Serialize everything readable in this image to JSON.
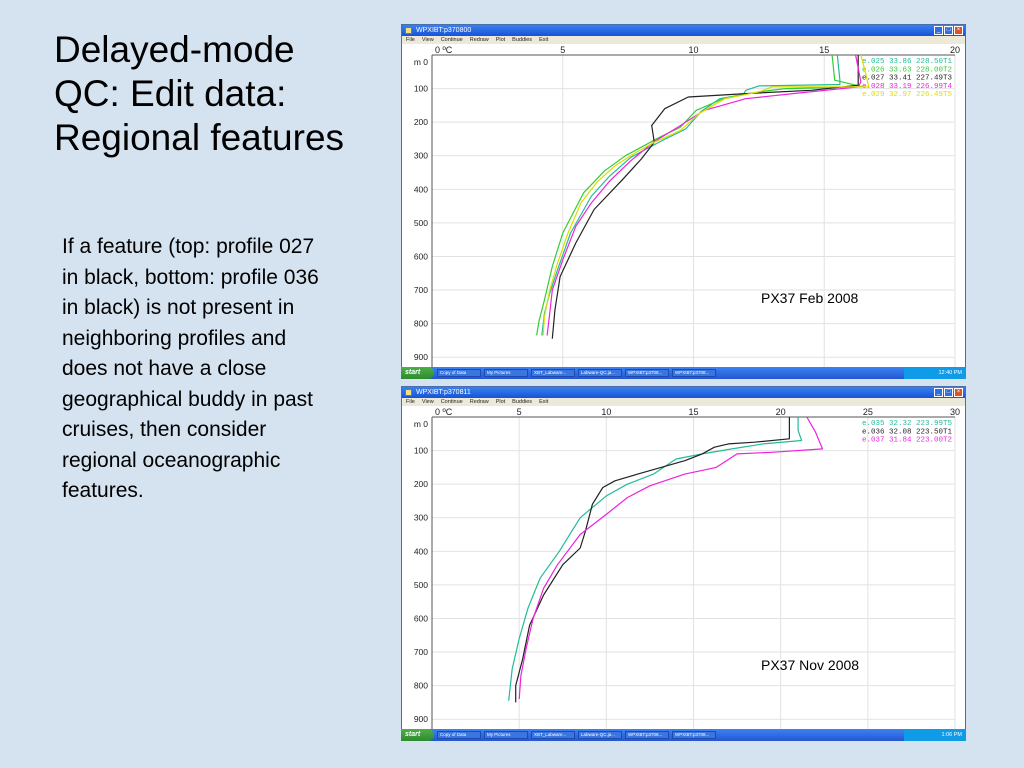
{
  "slide": {
    "title_lines": [
      "Delayed-mode",
      "QC: Edit data:",
      "Regional features"
    ],
    "body": "If a feature (top: profile 027 in black, bottom: profile 036 in black) is not present in neighboring profiles and does not have a close geographical buddy in past cruises, then consider regional oceanographic features."
  },
  "windows": [
    {
      "title": "WPXIBT:p370800",
      "menu": [
        "File",
        "View",
        "Continue",
        "Redraw",
        "Plot",
        "Buddies",
        "Exit"
      ],
      "caption": "PX37  Feb 2008"
    },
    {
      "title": "WPXIBT:p370811",
      "menu": [
        "File",
        "View",
        "Continue",
        "Redraw",
        "Plot",
        "Buddies",
        "Exit"
      ],
      "caption": "PX37  Nov 2008"
    }
  ],
  "taskbar": {
    "start_label": "start",
    "tasks": [
      "Copy of Data",
      "My Pictures",
      "XBT_Labware...",
      "Labware-QC.ja...",
      "WPXIBT:p3708...",
      "WPXIBT:p3708..."
    ],
    "clock_top": "12:40 PM",
    "clock_bottom": "1:06 PM"
  },
  "chart_data": [
    {
      "type": "line",
      "x_unit": "0 ºC",
      "y_unit": "m 0",
      "xlim": [
        0,
        20
      ],
      "ylim": [
        0,
        950
      ],
      "x_ticks": [
        5,
        10,
        15,
        20
      ],
      "y_ticks": [
        100,
        200,
        300,
        400,
        500,
        600,
        700,
        800,
        900
      ],
      "legend_position": "top-right",
      "series": [
        {
          "name": "e.025   33.86  228.50T1",
          "color": "#22bb99",
          "points": [
            [
              15.5,
              0
            ],
            [
              15.6,
              75
            ],
            [
              15.6,
              88
            ],
            [
              12.5,
              92
            ],
            [
              12,
              105
            ],
            [
              11.9,
              118
            ],
            [
              11,
              130
            ],
            [
              10.3,
              168
            ],
            [
              9.7,
              220
            ],
            [
              8.8,
              255
            ],
            [
              7.6,
              305
            ],
            [
              6.8,
              360
            ],
            [
              6.1,
              420
            ],
            [
              5.3,
              530
            ],
            [
              4.8,
              640
            ],
            [
              4.5,
              710
            ],
            [
              4.3,
              770
            ],
            [
              4.2,
              835
            ]
          ]
        },
        {
          "name": "e.026   33.63  228.00T2",
          "color": "#33cc33",
          "points": [
            [
              15.3,
              0
            ],
            [
              15.4,
              75
            ],
            [
              16.5,
              95
            ],
            [
              13.5,
              100
            ],
            [
              12.5,
              110
            ],
            [
              11.2,
              128
            ],
            [
              10.1,
              165
            ],
            [
              9.5,
              215
            ],
            [
              8.7,
              245
            ],
            [
              7.4,
              300
            ],
            [
              6.6,
              345
            ],
            [
              5.8,
              410
            ],
            [
              5.0,
              530
            ],
            [
              4.6,
              630
            ],
            [
              4.3,
              730
            ],
            [
              4.1,
              790
            ],
            [
              4.0,
              835
            ]
          ]
        },
        {
          "name": "e.027   33.41  227.49T3",
          "color": "#222222",
          "points": [
            [
              16.3,
              0
            ],
            [
              16.3,
              90
            ],
            [
              14.5,
              105
            ],
            [
              12,
              115
            ],
            [
              9.8,
              125
            ],
            [
              8.9,
              160
            ],
            [
              8.4,
              210
            ],
            [
              8.5,
              260
            ],
            [
              8.0,
              310
            ],
            [
              7.3,
              370
            ],
            [
              6.2,
              460
            ],
            [
              5.5,
              560
            ],
            [
              4.9,
              660
            ],
            [
              4.7,
              760
            ],
            [
              4.6,
              845
            ]
          ]
        },
        {
          "name": "e.028   33.19  226.99T4",
          "color": "#ee22dd",
          "points": [
            [
              16.2,
              0
            ],
            [
              16.4,
              80
            ],
            [
              16.3,
              95
            ],
            [
              13.8,
              115
            ],
            [
              12,
              130
            ],
            [
              10.4,
              165
            ],
            [
              9.4,
              215
            ],
            [
              8.5,
              258
            ],
            [
              7.6,
              315
            ],
            [
              6.8,
              375
            ],
            [
              6.1,
              440
            ],
            [
              5.5,
              510
            ],
            [
              5.0,
              610
            ],
            [
              4.6,
              700
            ],
            [
              4.5,
              770
            ],
            [
              4.4,
              835
            ]
          ]
        },
        {
          "name": "e.029   32.97  226.49T5",
          "color": "#dddd00",
          "points": [
            [
              16.4,
              0
            ],
            [
              16.6,
              60
            ],
            [
              16.7,
              95
            ],
            [
              13,
              95
            ],
            [
              12.5,
              110
            ],
            [
              11.2,
              130
            ],
            [
              10.2,
              175
            ],
            [
              9.5,
              225
            ],
            [
              8.5,
              260
            ],
            [
              7.8,
              290
            ],
            [
              7.0,
              330
            ],
            [
              6.3,
              380
            ],
            [
              5.7,
              440
            ],
            [
              5.2,
              530
            ],
            [
              4.8,
              620
            ],
            [
              4.5,
              700
            ],
            [
              4.3,
              780
            ],
            [
              4.25,
              835
            ]
          ]
        }
      ]
    },
    {
      "type": "line",
      "x_unit": "0 ºC",
      "y_unit": "m 0",
      "xlim": [
        0,
        30
      ],
      "ylim": [
        0,
        950
      ],
      "x_ticks": [
        5,
        10,
        15,
        20,
        25,
        30
      ],
      "y_ticks": [
        100,
        200,
        300,
        400,
        500,
        600,
        700,
        800,
        900
      ],
      "legend_position": "top-right",
      "series": [
        {
          "name": "e.035   32.32  223.99T5",
          "color": "#22bb99",
          "points": [
            [
              21,
              0
            ],
            [
              21,
              40
            ],
            [
              21.2,
              70
            ],
            [
              19,
              80
            ],
            [
              17.2,
              95
            ],
            [
              15.5,
              110
            ],
            [
              14,
              125
            ],
            [
              12.7,
              170
            ],
            [
              11.2,
              200
            ],
            [
              10,
              235
            ],
            [
              8.5,
              300
            ],
            [
              7.3,
              400
            ],
            [
              6.2,
              480
            ],
            [
              5.5,
              570
            ],
            [
              5.0,
              660
            ],
            [
              4.6,
              750
            ],
            [
              4.4,
              845
            ]
          ]
        },
        {
          "name": "e.036   32.08  223.50T1",
          "color": "#222222",
          "points": [
            [
              20.5,
              0
            ],
            [
              20.5,
              65
            ],
            [
              18.5,
              75
            ],
            [
              17,
              80
            ],
            [
              16.2,
              90
            ],
            [
              15.5,
              110
            ],
            [
              14.5,
              130
            ],
            [
              11.8,
              170
            ],
            [
              10.5,
              190
            ],
            [
              9.8,
              210
            ],
            [
              9.2,
              260
            ],
            [
              8.8,
              340
            ],
            [
              8.5,
              390
            ],
            [
              7.5,
              440
            ],
            [
              6.4,
              530
            ],
            [
              5.6,
              620
            ],
            [
              5.2,
              720
            ],
            [
              4.8,
              800
            ],
            [
              4.8,
              850
            ]
          ]
        },
        {
          "name": "e.037   31.84  223.00T2",
          "color": "#ee22dd",
          "points": [
            [
              21.5,
              0
            ],
            [
              22,
              45
            ],
            [
              22.4,
              95
            ],
            [
              19.5,
              105
            ],
            [
              17.5,
              110
            ],
            [
              16.3,
              150
            ],
            [
              14.5,
              170
            ],
            [
              12.5,
              205
            ],
            [
              11.2,
              240
            ],
            [
              10,
              290
            ],
            [
              8.5,
              350
            ],
            [
              7.2,
              440
            ],
            [
              6.4,
              510
            ],
            [
              5.8,
              600
            ],
            [
              5.4,
              690
            ],
            [
              5.1,
              770
            ],
            [
              5.0,
              840
            ]
          ]
        }
      ]
    }
  ]
}
